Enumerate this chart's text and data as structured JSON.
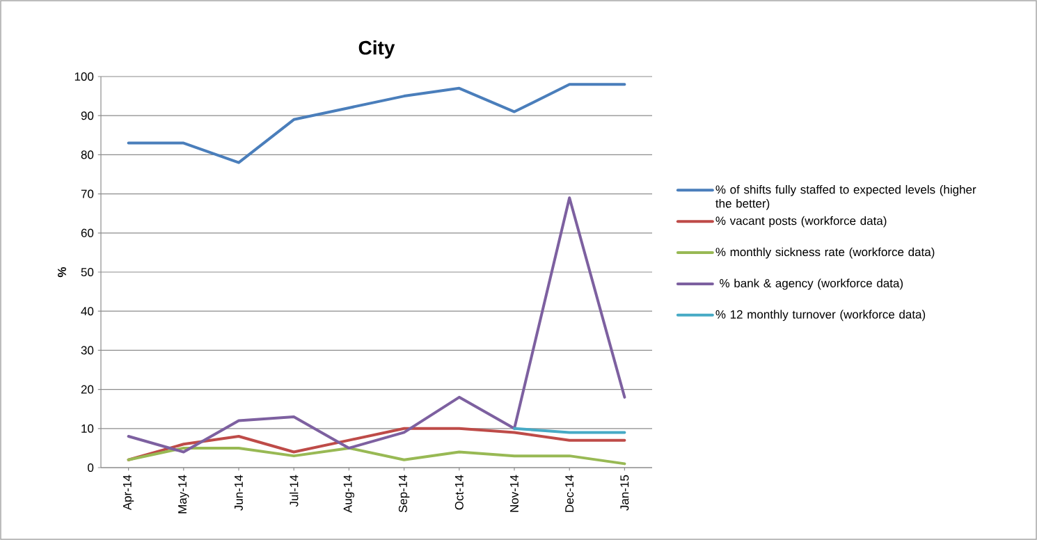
{
  "chart_data": {
    "type": "line",
    "title": "City",
    "ylabel": "%",
    "categories": [
      "Apr-14",
      "May-14",
      "Jun-14",
      "Jul-14",
      "Aug-14",
      "Sep-14",
      "Oct-14",
      "Nov-14",
      "Dec-14",
      "Jan-15"
    ],
    "series": [
      {
        "name": "% of shifts fully staffed to expected levels (higher the better)",
        "color": "#4a7ebb",
        "values": [
          83,
          83,
          78,
          89,
          92,
          95,
          97,
          91,
          98,
          98
        ]
      },
      {
        "name": "% vacant posts (workforce data)",
        "color": "#be4b48",
        "values": [
          2,
          6,
          8,
          4,
          7,
          10,
          10,
          9,
          7,
          7
        ]
      },
      {
        "name": "% monthly sickness rate (workforce data)",
        "color": "#98b954",
        "values": [
          2,
          5,
          5,
          3,
          5,
          2,
          4,
          3,
          3,
          1
        ]
      },
      {
        "name": " % bank & agency (workforce data)",
        "color": "#7d60a0",
        "values": [
          8,
          4,
          12,
          13,
          5,
          9,
          18,
          10,
          69,
          18
        ]
      },
      {
        "name": "% 12 monthly turnover (workforce data)",
        "color": "#46aac5",
        "values": [
          null,
          null,
          null,
          null,
          null,
          null,
          null,
          10,
          9,
          9
        ]
      }
    ],
    "ylim": [
      0,
      100
    ],
    "yticks": [
      0,
      10,
      20,
      30,
      40,
      50,
      60,
      70,
      80,
      90,
      100
    ],
    "grid": "y",
    "legend": "right",
    "marker": "none"
  }
}
